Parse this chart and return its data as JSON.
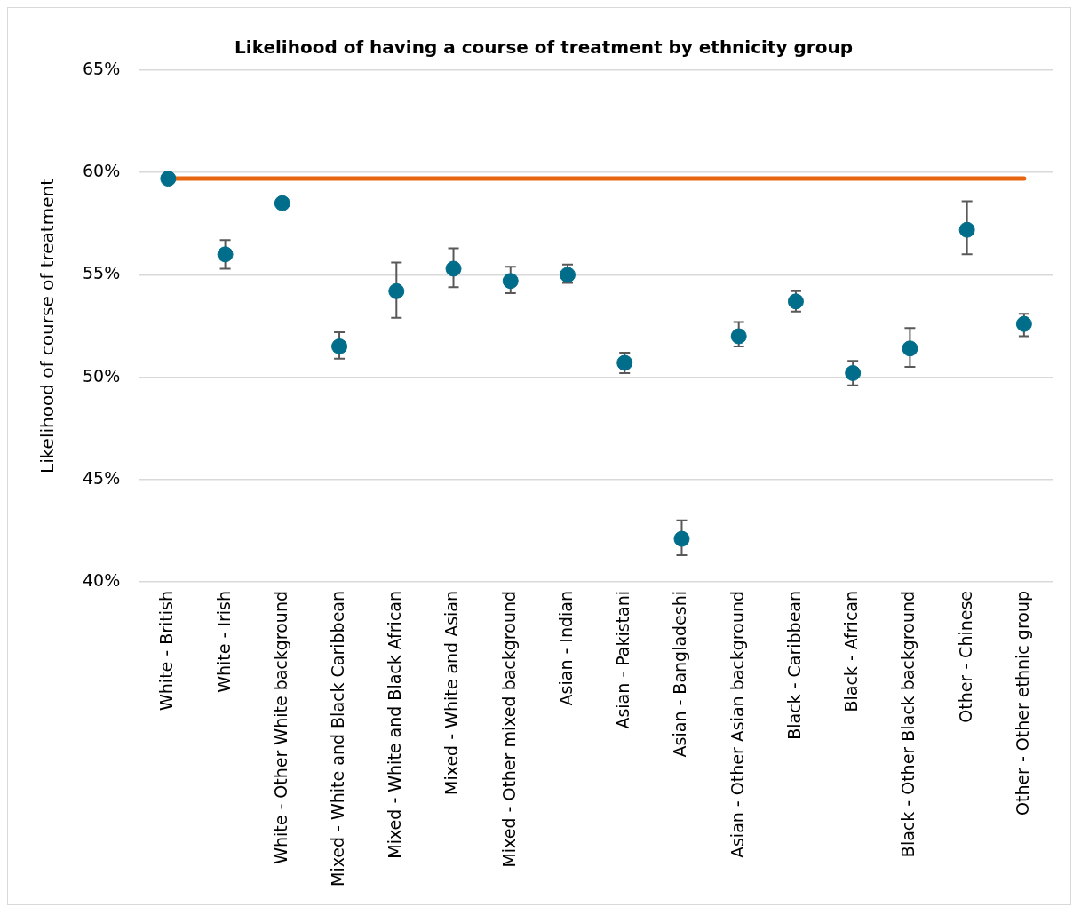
{
  "chart_data": {
    "type": "scatter",
    "title": "Likelihood of having a course of treatment by ethnicity group",
    "ylabel": "Likelihood of course of treatment",
    "categories": [
      "White - British",
      "White - Irish",
      "White - Other White background",
      "Mixed - White and Black Caribbean",
      "Mixed - White and Black African",
      "Mixed - White and Asian",
      "Mixed - Other mixed background",
      "Asian - Indian",
      "Asian - Pakistani",
      "Asian - Bangladeshi",
      "Asian - Other Asian background",
      "Black - Caribbean",
      "Black - African",
      "Black - Other Black background",
      "Other - Chinese",
      "Other - Other ethnic group"
    ],
    "values": [
      59.7,
      56.0,
      58.5,
      51.5,
      54.2,
      55.3,
      54.7,
      55.0,
      50.7,
      42.1,
      52.0,
      53.7,
      50.2,
      51.4,
      57.2,
      52.6
    ],
    "errors": [
      null,
      [
        55.3,
        56.7
      ],
      null,
      [
        50.9,
        52.2
      ],
      [
        52.9,
        55.6
      ],
      [
        54.4,
        56.3
      ],
      [
        54.1,
        55.4
      ],
      [
        54.6,
        55.5
      ],
      [
        50.2,
        51.2
      ],
      [
        41.3,
        43.0
      ],
      [
        51.5,
        52.7
      ],
      [
        53.2,
        54.2
      ],
      [
        49.6,
        50.8
      ],
      [
        50.5,
        52.4
      ],
      [
        56.0,
        58.6
      ],
      [
        52.0,
        53.1
      ]
    ],
    "color": "#006d8a",
    "marker": "circle",
    "ylim": [
      40,
      65
    ],
    "yticks": [
      {
        "value": 40,
        "label": "40%"
      },
      {
        "value": 45,
        "label": "45%"
      },
      {
        "value": 50,
        "label": "50%"
      },
      {
        "value": 55,
        "label": "55%"
      },
      {
        "value": 60,
        "label": "60%"
      },
      {
        "value": 65,
        "label": "65%"
      }
    ],
    "ref_lines": [
      {
        "axis": "y",
        "value": 59.7,
        "color": "#e8650f"
      }
    ],
    "grid": "y",
    "legend": false
  }
}
